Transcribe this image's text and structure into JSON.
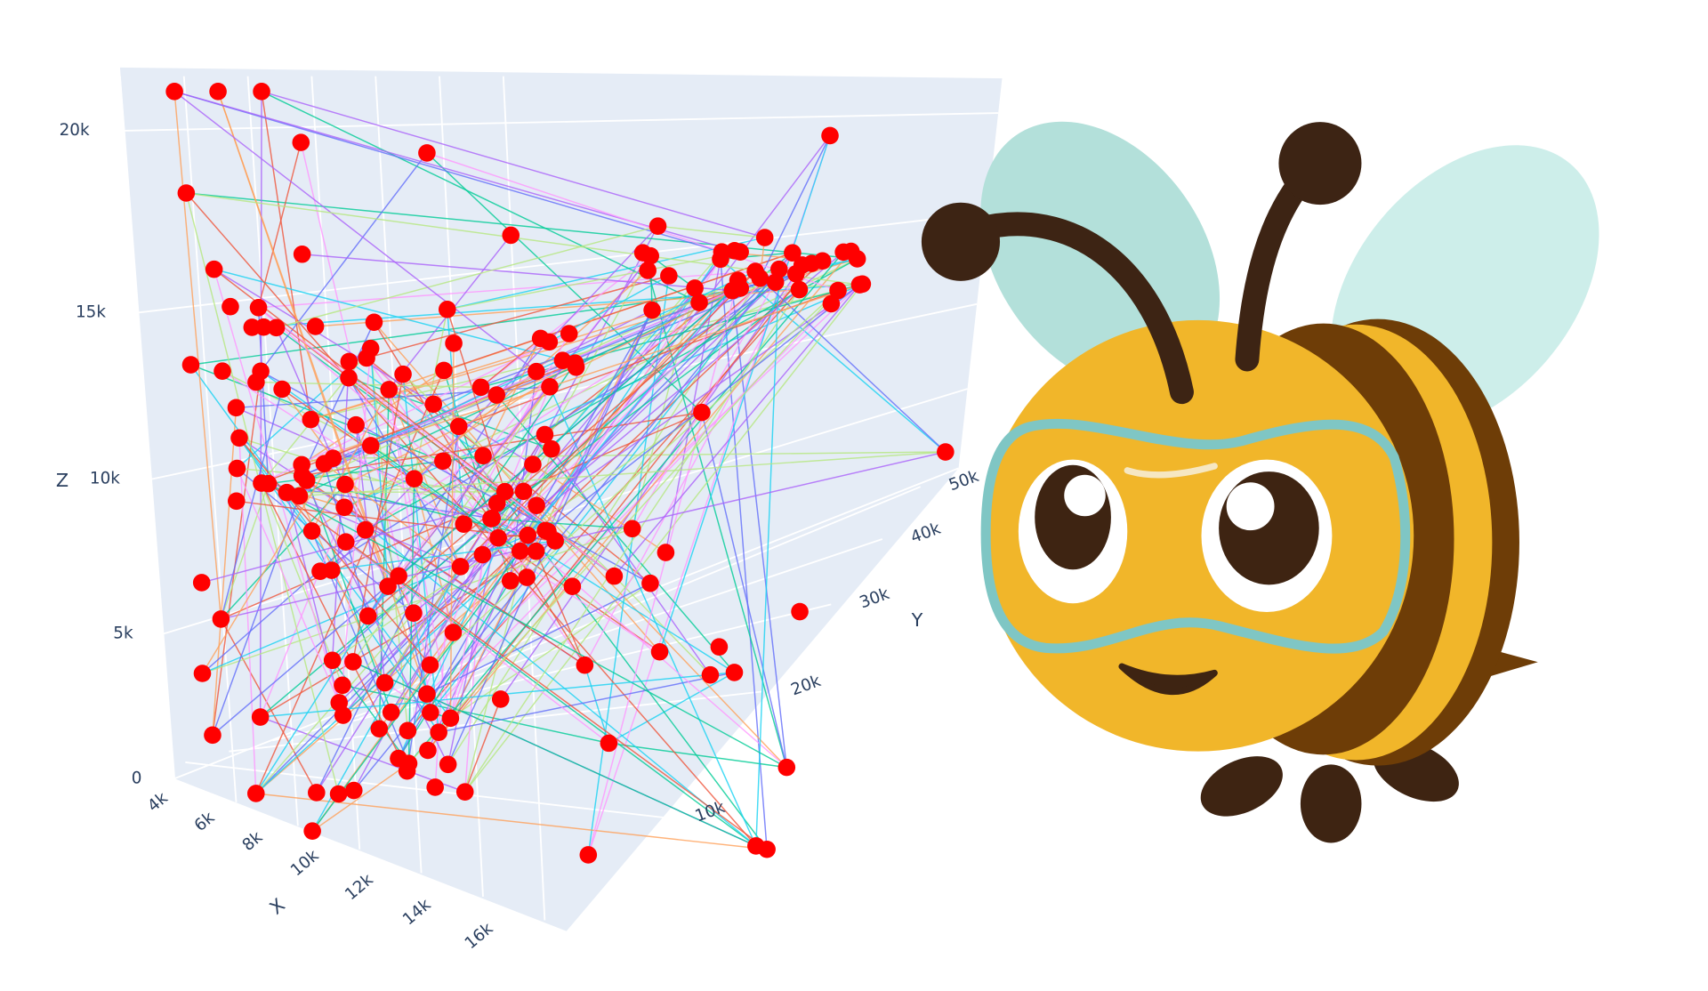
{
  "plot": {
    "axes": {
      "x": {
        "title": "X",
        "ticks": [
          "4k",
          "6k",
          "8k",
          "10k",
          "12k",
          "14k",
          "16k"
        ]
      },
      "y": {
        "title": "Y",
        "ticks": [
          "10k",
          "20k",
          "30k",
          "40k",
          "50k"
        ]
      },
      "z": {
        "title": "Z",
        "ticks": [
          "0",
          "5k",
          "10k",
          "15k",
          "20k"
        ]
      }
    }
  }
}
